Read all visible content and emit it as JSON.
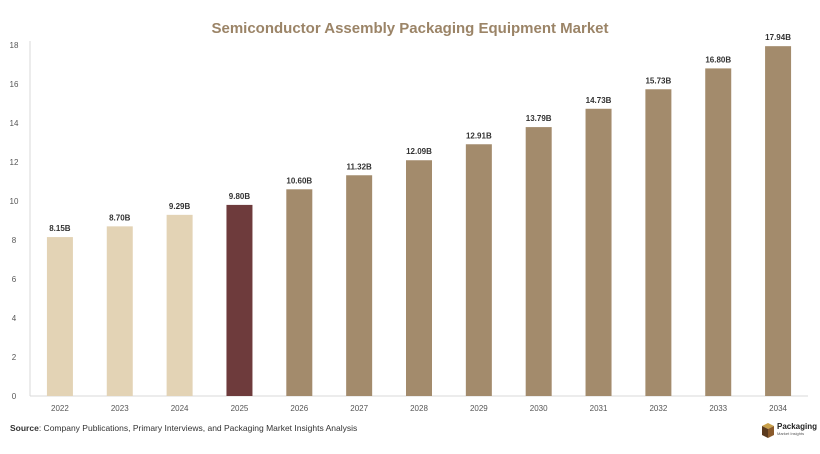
{
  "chart_data": {
    "type": "bar",
    "title": "Semiconductor Assembly Packaging Equipment Market",
    "categories": [
      "2022",
      "2023",
      "2024",
      "2025",
      "2026",
      "2027",
      "2028",
      "2029",
      "2030",
      "2031",
      "2032",
      "2033",
      "2034"
    ],
    "values": [
      8.15,
      8.7,
      9.29,
      9.8,
      10.6,
      11.32,
      12.09,
      12.91,
      13.79,
      14.73,
      15.73,
      16.8,
      17.94
    ],
    "data_labels": [
      "8.15B",
      "8.70B",
      "9.29B",
      "9.80B",
      "10.60B",
      "11.32B",
      "12.09B",
      "12.91B",
      "13.79B",
      "14.73B",
      "15.73B",
      "16.80B",
      "17.94B"
    ],
    "yticks": [
      0,
      2,
      4,
      6,
      8,
      10,
      12,
      14,
      16,
      18
    ],
    "ylim": [
      0,
      18
    ],
    "xlabel": "",
    "ylabel": "",
    "grid": false,
    "legend": "none",
    "colors": {
      "historical": "#e3d3b5",
      "current": "#6e3b3c",
      "forecast": "#a38b6c"
    },
    "bar_color_groups": [
      "historical",
      "historical",
      "historical",
      "current",
      "forecast",
      "forecast",
      "forecast",
      "forecast",
      "forecast",
      "forecast",
      "forecast",
      "forecast",
      "forecast"
    ]
  },
  "source": {
    "label": "Source",
    "text": ": Company Publications, Primary Interviews, and Packaging Market Insights Analysis"
  },
  "brand": {
    "name": "Packaging",
    "tagline": "Market Insights",
    "icon": "box-icon"
  }
}
